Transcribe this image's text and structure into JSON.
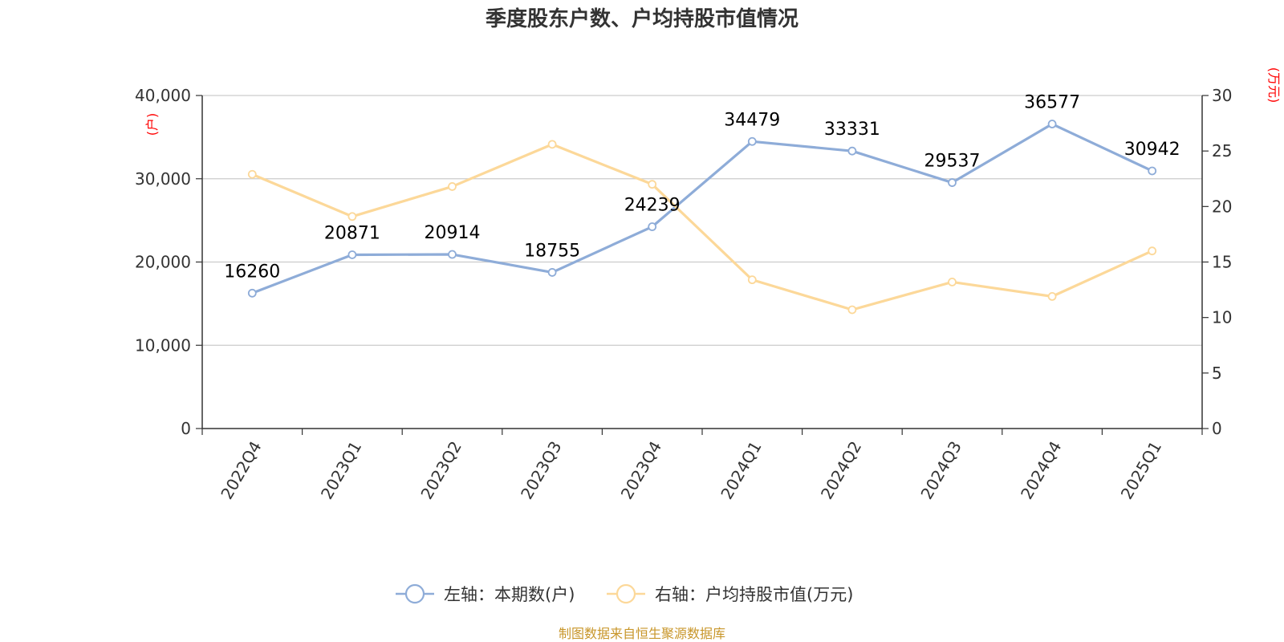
{
  "chart_data": {
    "type": "line",
    "title": "季度股东户数、户均持股市值情况",
    "categories": [
      "2022Q4",
      "2023Q1",
      "2023Q2",
      "2023Q3",
      "2023Q4",
      "2024Q1",
      "2024Q2",
      "2024Q3",
      "2024Q4",
      "2025Q1"
    ],
    "left_axis": {
      "unit": "(户)",
      "min": 0,
      "max": 40000,
      "ticks": [
        "0",
        "10,000",
        "20,000",
        "30,000",
        "40,000"
      ]
    },
    "right_axis": {
      "unit": "(万元)",
      "min": 0,
      "max": 30,
      "ticks": [
        "0",
        "5",
        "10",
        "15",
        "20",
        "25",
        "30"
      ]
    },
    "series": [
      {
        "name": "左轴：本期数(户)",
        "axis": "left",
        "color": "#8eacd8",
        "values": [
          16260,
          20871,
          20914,
          18755,
          24239,
          34479,
          33331,
          29537,
          36577,
          30942
        ],
        "labels": [
          "16260",
          "20871",
          "20914",
          "18755",
          "24239",
          "34479",
          "33331",
          "29537",
          "36577",
          "30942"
        ]
      },
      {
        "name": "右轴：户均持股市值(万元)",
        "axis": "right",
        "color": "#fcd899",
        "values": [
          22.9,
          19.1,
          21.8,
          25.6,
          22.0,
          13.4,
          10.7,
          13.2,
          11.9,
          16.0
        ]
      }
    ],
    "grid": true,
    "legend_position": "bottom-center",
    "source": "制图数据来自恒生聚源数据库"
  }
}
